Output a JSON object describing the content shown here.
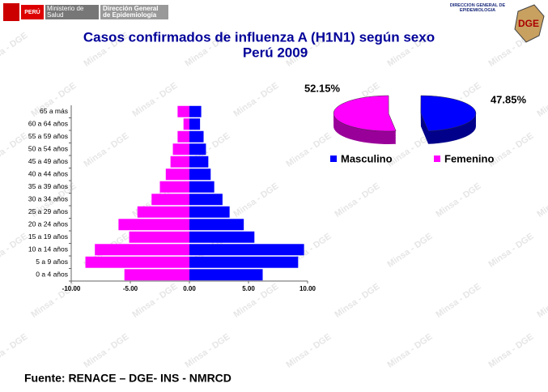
{
  "header": {
    "country": "PERÚ",
    "ministry": "Ministerio de Salud",
    "office": "Dirección General de Epidemiología",
    "corner": "DIRECCIÓN GENERAL DE EPIDEMIOLOGIA",
    "watermark": "Minsa - DGE"
  },
  "footer": {
    "source": "Fuente: RENACE – DGE- INS - NMRCD"
  },
  "chart_data": [
    {
      "type": "bar",
      "horizontal": true,
      "title": "Casos confirmados de influenza A (H1N1) según sexo",
      "subtitle": "Perú 2009",
      "categories": [
        "0 a 4 años",
        "5 a 9 años",
        "10 a 14 años",
        "15 a 19 años",
        "20 a 24 años",
        "25 a 29 años",
        "30 a 34 años",
        "35 a 39 años",
        "40 a 44 años",
        "45 a 49 años",
        "50 a 54 años",
        "55 a 59 años",
        "60 a 64 años",
        "65 a más"
      ],
      "series": [
        {
          "color": "#0000ff",
          "values": [
            6.2,
            9.2,
            9.7,
            5.5,
            4.6,
            3.4,
            2.8,
            2.1,
            1.8,
            1.6,
            1.4,
            1.2,
            0.9,
            1.0
          ]
        },
        {
          "color": "#ff00ff",
          "values": [
            -5.5,
            -8.8,
            -8.0,
            -5.1,
            -6.0,
            -4.4,
            -3.2,
            -2.5,
            -2.0,
            -1.6,
            -1.4,
            -1.0,
            -0.5,
            -1.0
          ]
        }
      ],
      "xlim": [
        -10,
        10
      ],
      "xticks": [
        {
          "value": -10,
          "label": "-10.00"
        },
        {
          "value": -5,
          "label": "-5.00"
        },
        {
          "value": 0,
          "label": "0.00"
        },
        {
          "value": 5,
          "label": "5.00"
        },
        {
          "value": 10,
          "label": "10.00"
        }
      ]
    },
    {
      "type": "pie",
      "categories": [
        "Masculino",
        "Femenino"
      ],
      "values": [
        47.85,
        52.15
      ],
      "value_labels": [
        "47.85%",
        "52.15%"
      ],
      "colors": [
        "#0000ff",
        "#ff00ff"
      ],
      "legend": "bottom"
    }
  ]
}
